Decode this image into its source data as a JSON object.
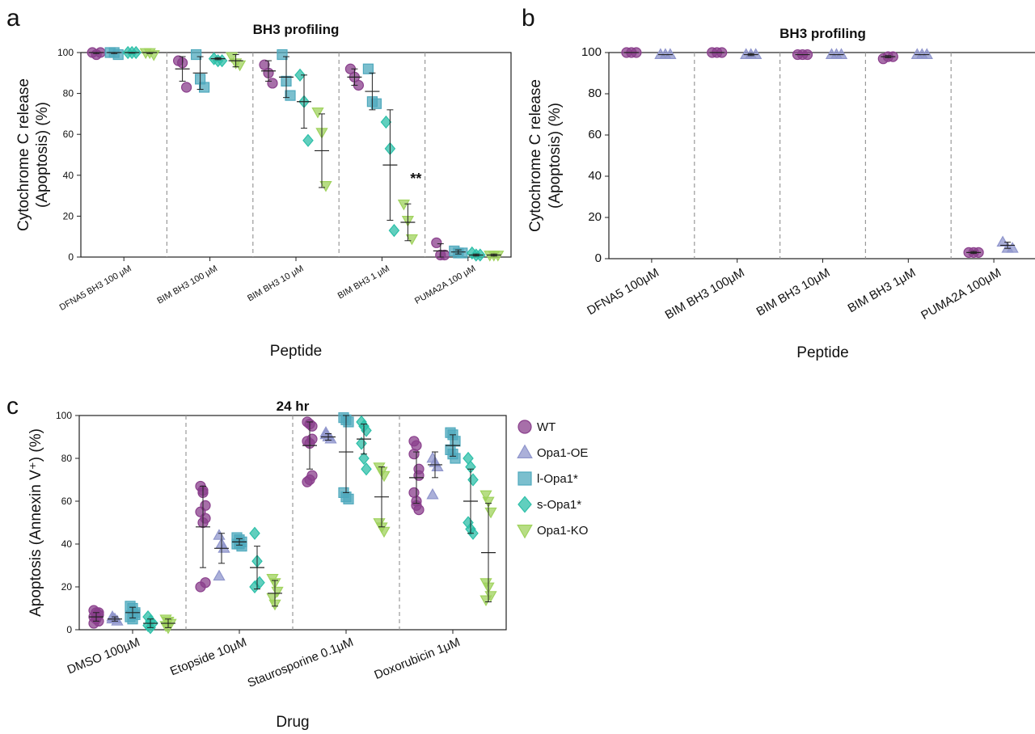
{
  "panels": {
    "a": "a",
    "b": "b",
    "c": "c"
  },
  "styles": {
    "WT": {
      "color": "#8a3f8c",
      "marker": "circle"
    },
    "Opa1-OE": {
      "color": "#8f95cc",
      "marker": "triangle-up"
    },
    "l-Opa1*": {
      "color": "#4fa9bd",
      "marker": "square"
    },
    "s-Opa1*": {
      "color": "#2cbfa8",
      "marker": "diamond"
    },
    "Opa1-KO": {
      "color": "#9fd25c",
      "marker": "triangle-down"
    }
  },
  "legend": {
    "items": [
      "WT",
      "Opa1-OE",
      "l-Opa1*",
      "s-Opa1*",
      "Opa1-KO"
    ]
  },
  "chart_data": [
    {
      "id": "a",
      "type": "scatter",
      "title": "BH3 profiling",
      "xlabel": "Peptide",
      "ylabel_lines": [
        "Cytochrome C release",
        "(Apoptosis) (%)"
      ],
      "ylim": [
        0,
        100
      ],
      "yticks": [
        "0",
        "20",
        "40",
        "60",
        "80",
        "100"
      ],
      "categories": [
        "DFNA5 BH3 100 μM",
        "BIM BH3 100 μM",
        "BIM BH3 10 μM",
        "BIM BH3 1 μM",
        "PUMA2A 100 μM"
      ],
      "series": [
        {
          "name": "WT",
          "points": [
            [
              100,
              99,
              100
            ],
            [
              96,
              95,
              83
            ],
            [
              94,
              90,
              85
            ],
            [
              92,
              88,
              84
            ],
            [
              7,
              1,
              1
            ]
          ],
          "mean": [
            100,
            92,
            91,
            88,
            3
          ],
          "sd": [
            0.5,
            6,
            5,
            4,
            3.5
          ]
        },
        {
          "name": "l-Opa1*",
          "points": [
            [
              100,
              100,
              99
            ],
            [
              99,
              87,
              83
            ],
            [
              99,
              86,
              79
            ],
            [
              92,
              76,
              75
            ],
            [
              3,
              2,
              2
            ]
          ],
          "mean": [
            100,
            90,
            88,
            81,
            2.5
          ],
          "sd": [
            0.5,
            8,
            10,
            9,
            1
          ]
        },
        {
          "name": "s-Opa1*",
          "points": [
            [
              100,
              100,
              100
            ],
            [
              97,
              96,
              96
            ],
            [
              89,
              76,
              57
            ],
            [
              66,
              53,
              13
            ],
            [
              2,
              1,
              1
            ]
          ],
          "mean": [
            100,
            97,
            76,
            45,
            1
          ],
          "sd": [
            0.3,
            0.5,
            13,
            27,
            0.5
          ]
        },
        {
          "name": "Opa1-KO",
          "points": [
            [
              100,
              100,
              99
            ],
            [
              98,
              95,
              94
            ],
            [
              71,
              61,
              35
            ],
            [
              26,
              18,
              9
            ],
            [
              1,
              1,
              1
            ]
          ],
          "mean": [
            100,
            96,
            52,
            17,
            1
          ],
          "sd": [
            0.5,
            3,
            18,
            9,
            0.5
          ]
        }
      ],
      "annotations": [
        {
          "text": "**",
          "category": 3,
          "y": 36
        }
      ]
    },
    {
      "id": "b",
      "type": "scatter",
      "title": "BH3 profiling",
      "xlabel": "Peptide",
      "ylabel_lines": [
        "Cytochrome C release",
        "(Apoptosis) (%)"
      ],
      "ylim": [
        0,
        100
      ],
      "yticks": [
        "0",
        "20",
        "40",
        "60",
        "80",
        "100"
      ],
      "categories": [
        "DFNA5 100μM",
        "BIM BH3 100μM",
        "BIM BH3 10μM",
        "BIM BH3 1μM",
        "PUMA2A 100μM"
      ],
      "series": [
        {
          "name": "WT",
          "points": [
            [
              100,
              100,
              100
            ],
            [
              100,
              100,
              100
            ],
            [
              99,
              99,
              99
            ],
            [
              97,
              98,
              98
            ],
            [
              3,
              3,
              3
            ]
          ],
          "mean": [
            100,
            100,
            99,
            98,
            3
          ],
          "sd": [
            0,
            0,
            0,
            0.5,
            0.5
          ]
        },
        {
          "name": "Opa1-OE",
          "points": [
            [
              99,
              99,
              99
            ],
            [
              99,
              99,
              99
            ],
            [
              99,
              99,
              99
            ],
            [
              99,
              99,
              99
            ],
            [
              8,
              5,
              5
            ]
          ],
          "mean": [
            99,
            99,
            99,
            99,
            6.5
          ],
          "sd": [
            0,
            0.5,
            0,
            0,
            1.5
          ]
        }
      ],
      "annotations": []
    },
    {
      "id": "c",
      "type": "scatter",
      "title": "24 hr",
      "xlabel": "Drug",
      "ylabel_lines": [
        "Apoptosis (Annexin V⁺) (%)"
      ],
      "ylim": [
        0,
        100
      ],
      "yticks": [
        "0",
        "20",
        "40",
        "60",
        "80",
        "100"
      ],
      "categories": [
        "DMSO 100μM",
        "Etopside 10μM",
        "Staurosporine 0.1μM",
        "Doxorubicin 1μM"
      ],
      "series": [
        {
          "name": "WT",
          "points": [
            [
              9,
              8,
              7,
              6,
              5,
              4,
              3,
              6,
              8
            ],
            [
              67,
              64,
              58,
              55,
              50,
              22,
              20,
              65,
              52
            ],
            [
              97,
              96,
              89,
              88,
              87,
              72,
              69,
              70,
              95
            ],
            [
              88,
              86,
              72,
              64,
              58,
              56,
              82,
              60,
              75
            ]
          ],
          "mean": [
            6,
            48,
            86,
            71
          ],
          "sd": [
            2,
            19,
            11,
            12
          ]
        },
        {
          "name": "Opa1-OE",
          "points": [
            [
              6,
              5,
              4,
              5
            ],
            [
              44,
              40,
              38,
              25
            ],
            [
              92,
              90,
              89,
              91
            ],
            [
              80,
              78,
              76,
              63
            ]
          ],
          "mean": [
            5,
            38,
            90,
            77
          ],
          "sd": [
            1,
            7,
            1.5,
            6
          ]
        },
        {
          "name": "l-Opa1*",
          "points": [
            [
              11,
              10,
              8,
              6,
              5,
              7
            ],
            [
              43,
              42,
              41,
              40,
              40,
              39
            ],
            [
              99,
              98,
              97,
              64,
              62,
              61
            ],
            [
              92,
              91,
              88,
              84,
              82,
              80
            ]
          ],
          "mean": [
            8,
            41,
            83,
            86
          ],
          "sd": [
            2.5,
            1.5,
            19,
            5
          ]
        },
        {
          "name": "s-Opa1*",
          "points": [
            [
              6,
              4,
              3,
              2,
              1
            ],
            [
              45,
              32,
              22,
              20
            ],
            [
              97,
              95,
              93,
              87,
              80,
              75
            ],
            [
              80,
              76,
              70,
              50,
              47,
              45
            ]
          ],
          "mean": [
            3,
            29,
            89,
            60
          ],
          "sd": [
            2,
            10,
            7,
            15
          ]
        },
        {
          "name": "Opa1-KO",
          "points": [
            [
              5,
              4,
              3,
              2,
              1
            ],
            [
              24,
              22,
              18,
              15,
              12
            ],
            [
              76,
              74,
              72,
              50,
              48,
              46
            ],
            [
              63,
              60,
              55,
              22,
              20,
              16,
              14
            ]
          ],
          "mean": [
            3,
            17,
            62,
            36
          ],
          "sd": [
            2,
            6,
            14,
            23
          ]
        }
      ],
      "annotations": []
    }
  ]
}
